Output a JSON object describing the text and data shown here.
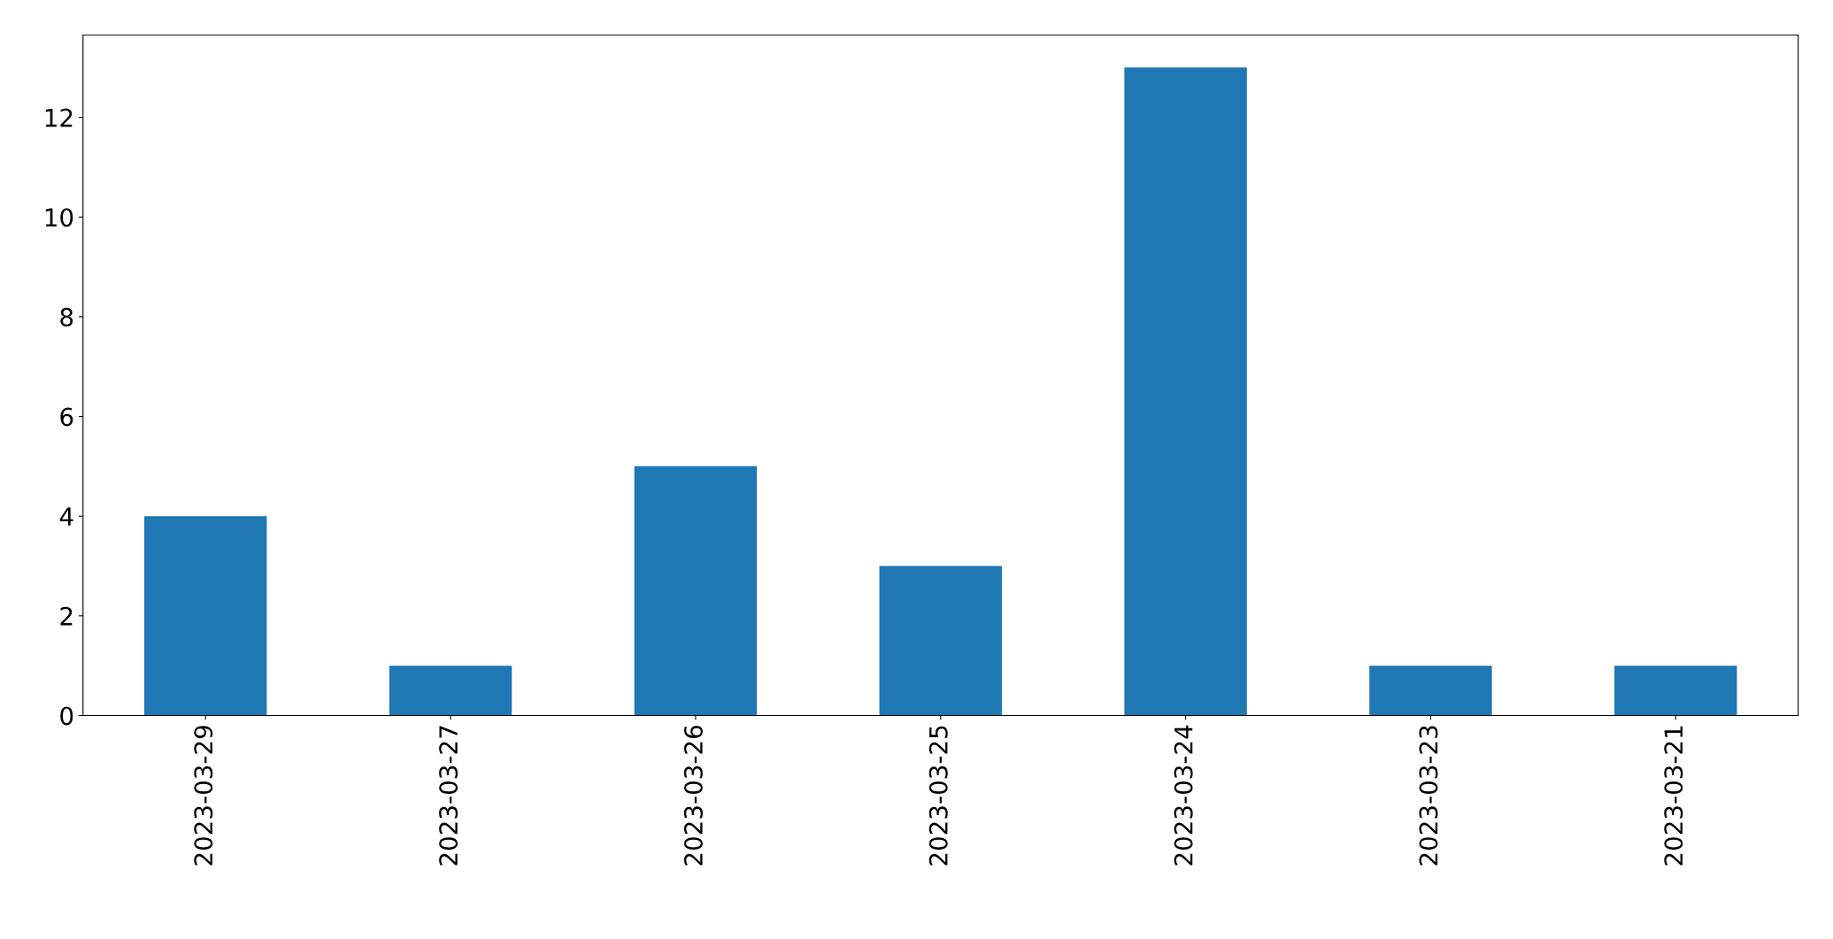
{
  "chart_data": {
    "type": "bar",
    "categories": [
      "2023-03-29",
      "2023-03-27",
      "2023-03-26",
      "2023-03-25",
      "2023-03-24",
      "2023-03-23",
      "2023-03-21"
    ],
    "values": [
      4,
      1,
      5,
      3,
      13,
      1,
      1
    ],
    "color": "#1f77b4",
    "ylim": [
      0,
      13.65
    ],
    "yticks": [
      0,
      2,
      4,
      6,
      8,
      10,
      12
    ],
    "grid": false,
    "legend": false
  }
}
